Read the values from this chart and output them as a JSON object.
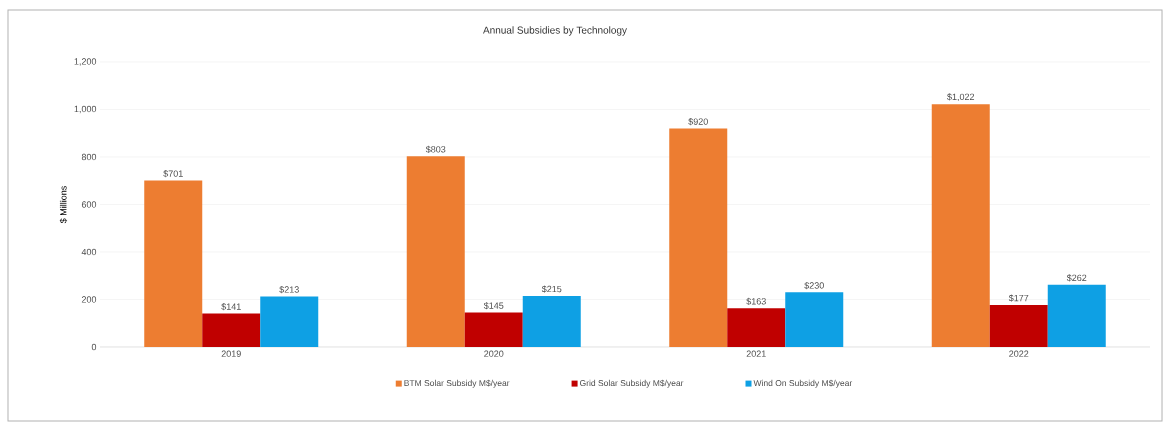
{
  "chart_data": {
    "type": "bar",
    "title": "Annual Subsidies by Technology",
    "ylabel": "$ Millions",
    "categories": [
      "2019",
      "2020",
      "2021",
      "2022"
    ],
    "series": [
      {
        "name": "BTM Solar Subsidy M$/year",
        "color": "#ed7d31",
        "values": [
          701,
          803,
          920,
          1022
        ],
        "value_labels": [
          "$701",
          "$803",
          "$920",
          "$1,022"
        ]
      },
      {
        "name": "Grid Solar Subsidy M$/year",
        "color": "#c00000",
        "values": [
          141,
          145,
          163,
          177
        ],
        "value_labels": [
          "$141",
          "$145",
          "$163",
          "$177"
        ]
      },
      {
        "name": "Wind On Subsidy M$/year",
        "color": "#0ea0e4",
        "values": [
          213,
          215,
          230,
          262
        ],
        "value_labels": [
          "$213",
          "$215",
          "$230",
          "$262"
        ]
      }
    ],
    "ylim": [
      0,
      1200
    ],
    "yticks": [
      0,
      200,
      400,
      600,
      800,
      {
        "value": 1000,
        "label": "1,000"
      },
      {
        "value": 1200,
        "label": "1,200"
      }
    ],
    "grid": "y",
    "legend": "bottom"
  }
}
